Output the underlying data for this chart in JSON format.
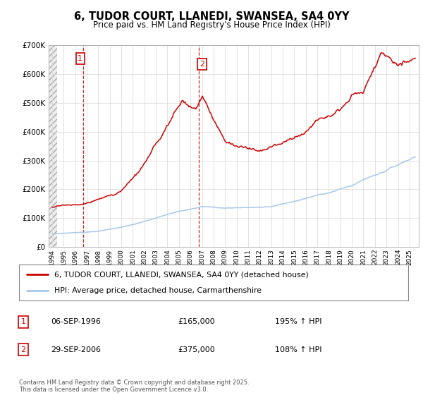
{
  "title": "6, TUDOR COURT, LLANEDI, SWANSEA, SA4 0YY",
  "subtitle": "Price paid vs. HM Land Registry's House Price Index (HPI)",
  "legend_line1": "6, TUDOR COURT, LLANEDI, SWANSEA, SA4 0YY (detached house)",
  "legend_line2": "HPI: Average price, detached house, Carmarthenshire",
  "hpi_color": "#a8c8e8",
  "price_color": "#cc0000",
  "annotation1_date": "06-SEP-1996",
  "annotation1_price": "£165,000",
  "annotation1_hpi": "195% ↑ HPI",
  "annotation2_date": "29-SEP-2006",
  "annotation2_price": "£375,000",
  "annotation2_hpi": "108% ↑ HPI",
  "purchase1_year": 1996.69,
  "purchase2_year": 2006.75,
  "ylim_max": 700000,
  "ylim_min": 0,
  "yticks": [
    0,
    100000,
    200000,
    300000,
    400000,
    500000,
    600000,
    700000
  ],
  "xlim_min": 1993.7,
  "xlim_max": 2025.8,
  "year_start": 1994,
  "year_end": 2025,
  "footer": "Contains HM Land Registry data © Crown copyright and database right 2025.\nThis data is licensed under the Open Government Licence v3.0.",
  "bg_color": "#ffffff",
  "grid_color": "#dddddd",
  "hatch_color": "#cccccc"
}
